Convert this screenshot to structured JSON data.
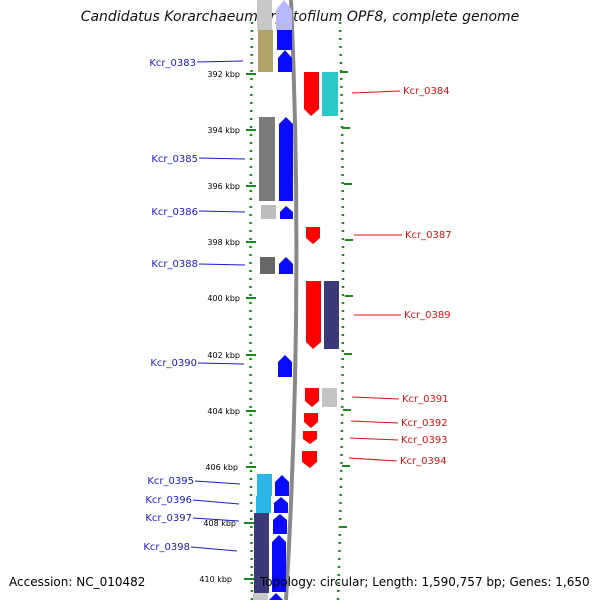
{
  "title": "Candidatus Korarchaeum cryptofilum OPF8, complete genome",
  "footer": {
    "accession": "Accession: NC_010482",
    "summary": "Topology: circular; Length: 1,590,757 bp; Genes: 1,650"
  },
  "colors": {
    "left_labels": "#1a1acc",
    "right_labels": "#dd1111",
    "dotted_track": "#1a8a1a",
    "backbone": "#888888"
  },
  "ticks": [
    "392 kbp",
    "394 kbp",
    "396 kbp",
    "398 kbp",
    "400 kbp",
    "402 kbp",
    "404 kbp",
    "406 kbp",
    "408 kbp",
    "410 kbp"
  ],
  "left_genes": [
    {
      "label": "Kcr_0383"
    },
    {
      "label": "Kcr_0385"
    },
    {
      "label": "Kcr_0386"
    },
    {
      "label": "Kcr_0388"
    },
    {
      "label": "Kcr_0390"
    },
    {
      "label": "Kcr_0395"
    },
    {
      "label": "Kcr_0396"
    },
    {
      "label": "Kcr_0397"
    },
    {
      "label": "Kcr_0398"
    }
  ],
  "right_genes": [
    {
      "label": "Kcr_0384"
    },
    {
      "label": "Kcr_0387"
    },
    {
      "label": "Kcr_0389"
    },
    {
      "label": "Kcr_0391"
    },
    {
      "label": "Kcr_0392"
    },
    {
      "label": "Kcr_0393"
    },
    {
      "label": "Kcr_0394"
    }
  ]
}
